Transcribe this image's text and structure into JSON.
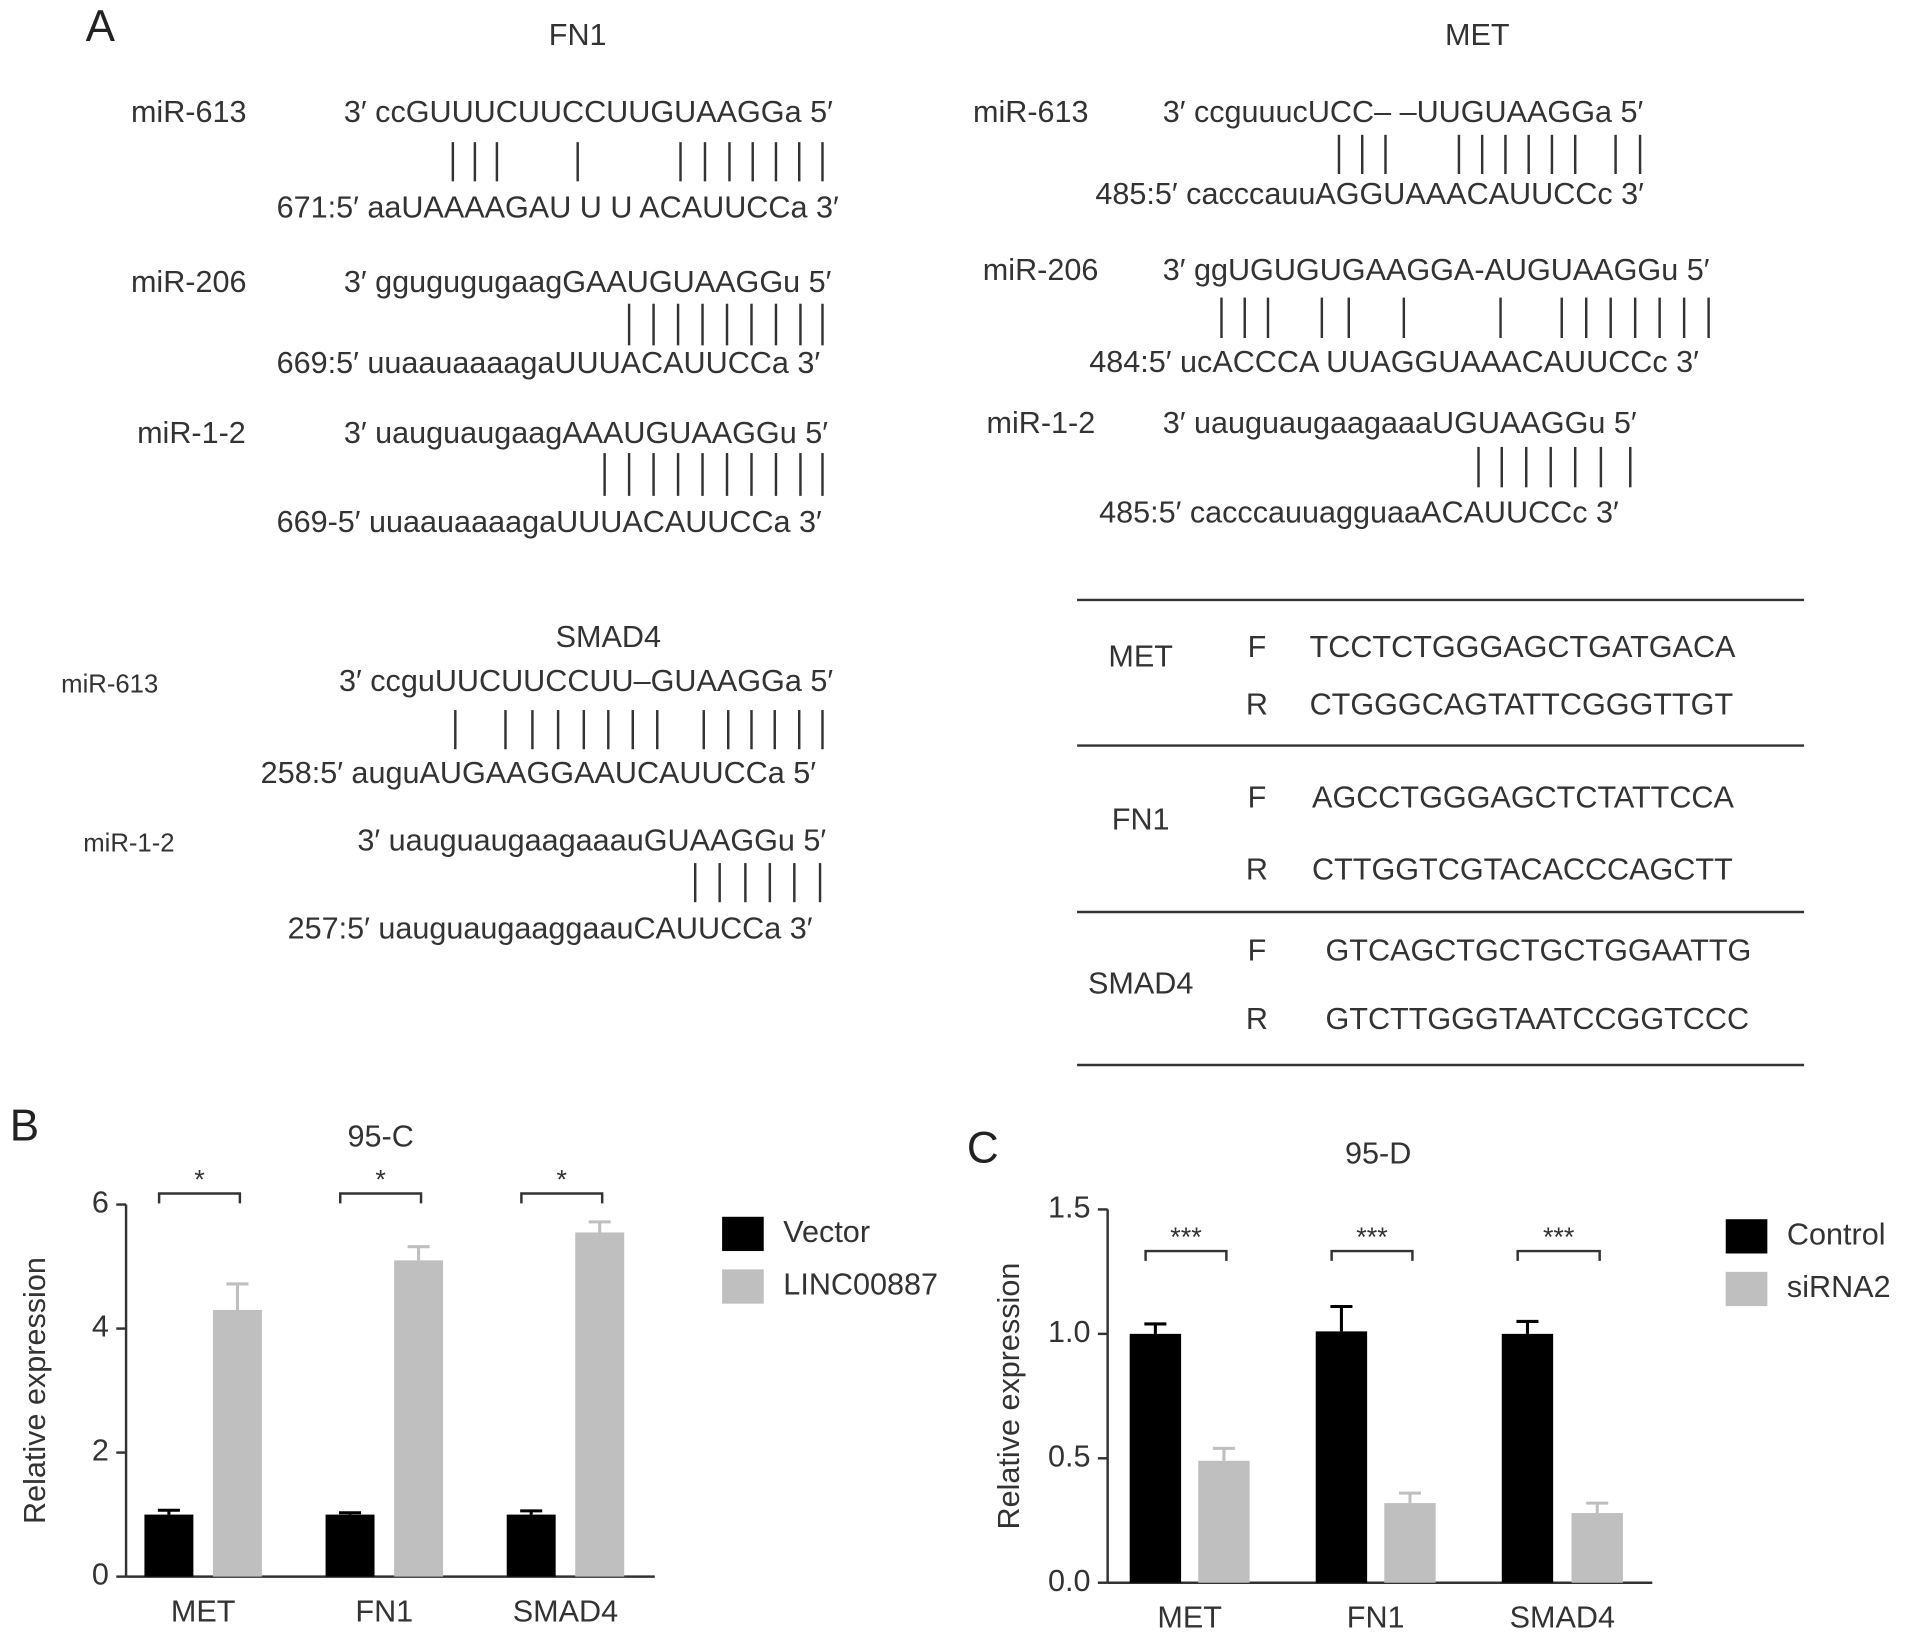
{
  "panel_labels": {
    "a": "A",
    "b": "B",
    "c": "C"
  },
  "alignments": [
    {
      "gene": "FN1",
      "pairs": [
        {
          "mirna": "miR-613",
          "mirna_seq": "3′ ccGUUUCUUCCUUGUAAGGa 5′",
          "target_seq": "671:5′ aaUAAAAGAU U U ACAUUCCa 3′"
        },
        {
          "mirna": "miR-206",
          "mirna_seq": "3′ ggugugugaagGAAUGUAAGGu 5′",
          "target_seq": "669:5′ uuaauaaaagaUUUACAUUCCa 3′"
        },
        {
          "mirna": "miR-1-2",
          "mirna_seq": "3′ uauguaugaagAAAUGUAAGGu 5′",
          "target_seq": "669-5′ uuaauaaaagaUUUACAUUCCa 3′"
        }
      ]
    },
    {
      "gene": "MET",
      "pairs": [
        {
          "mirna": "miR-613",
          "mirna_seq": "3′ ccguuucUCC– –UUGUAAGGa 5′",
          "target_seq": "485:5′ cacccauuAGGUAAACAUUCCc 3′"
        },
        {
          "mirna": "miR-206",
          "mirna_seq": "3′ ggUGUGUGAAGGA-AUGUAAGGu 5′",
          "target_seq": "484:5′ ucACCCA UUAGGUAAACAUUCCc 3′"
        },
        {
          "mirna": "miR-1-2",
          "mirna_seq": "3′ uauguaugaagaaaUGUAAGGu 5′",
          "target_seq": "485:5′ cacccauuagguaaACAUUCCc 3′"
        }
      ]
    },
    {
      "gene": "SMAD4",
      "pairs": [
        {
          "mirna": "miR-613",
          "mirna_seq": "3′ ccguUUCUUCCUU–GUAAGGa 5′",
          "target_seq": "258:5′ auguAUGAAGGAAUCAUUCCa 5′"
        },
        {
          "mirna": "miR-1-2",
          "mirna_seq": "3′ uauguaugaagaaauGUAAGGu 5′",
          "target_seq": "257:5′ uauguaugaaggaauCAUUCCa 3′"
        }
      ]
    }
  ],
  "primer_table": {
    "rows": [
      {
        "gene": "MET",
        "primers": [
          {
            "strand": "F",
            "seq": "TCCTCTGGGAGCTGATGACA"
          },
          {
            "strand": "R",
            "seq": "CTGGGCAGTATTCGGGTTGT"
          }
        ]
      },
      {
        "gene": "FN1",
        "primers": [
          {
            "strand": "F",
            "seq": "AGCCTGGGAGCTCTATTCCA"
          },
          {
            "strand": "R",
            "seq": "CTTGGTCGTACACCCAGCTT"
          }
        ]
      },
      {
        "gene": "SMAD4",
        "primers": [
          {
            "strand": "F",
            "seq": "GTCAGCTGCTGCTGGAATTG"
          },
          {
            "strand": "R",
            "seq": "GTCTTGGGTAATCCGGTCCC"
          }
        ]
      }
    ]
  },
  "chart_data": [
    {
      "type": "bar",
      "title": "95-C",
      "y_label": "Relative expression",
      "categories": [
        "MET",
        "FN1",
        "SMAD4"
      ],
      "series": [
        {
          "name": "Vector",
          "color": "#000000",
          "values": [
            1.0,
            1.0,
            1.0
          ],
          "errors": [
            0.07,
            0.03,
            0.06
          ]
        },
        {
          "name": "LINC00887",
          "color": "#bfbfbf",
          "values": [
            4.3,
            5.1,
            5.55
          ],
          "errors": [
            0.42,
            0.22,
            0.17
          ]
        }
      ],
      "significance": [
        "*",
        "*",
        "*"
      ],
      "ylim": [
        0,
        6
      ],
      "yticks": [
        0,
        2,
        4,
        6
      ],
      "legend": "right"
    },
    {
      "type": "bar",
      "title": "95-D",
      "y_label": "Relative expression",
      "categories": [
        "MET",
        "FN1",
        "SMAD4"
      ],
      "series": [
        {
          "name": "Control",
          "color": "#000000",
          "values": [
            1.0,
            1.01,
            1.0
          ],
          "errors": [
            0.04,
            0.1,
            0.05
          ]
        },
        {
          "name": "siRNA2",
          "color": "#bfbfbf",
          "values": [
            0.49,
            0.32,
            0.28
          ],
          "errors": [
            0.05,
            0.04,
            0.04
          ]
        }
      ],
      "significance": [
        "***",
        "***",
        "***"
      ],
      "ylim": [
        0,
        1.5
      ],
      "yticks": [
        {
          "value": 0,
          "label": "0.0"
        },
        0.5,
        {
          "value": 1,
          "label": "1.0"
        },
        1.5
      ],
      "legend": "right"
    }
  ]
}
